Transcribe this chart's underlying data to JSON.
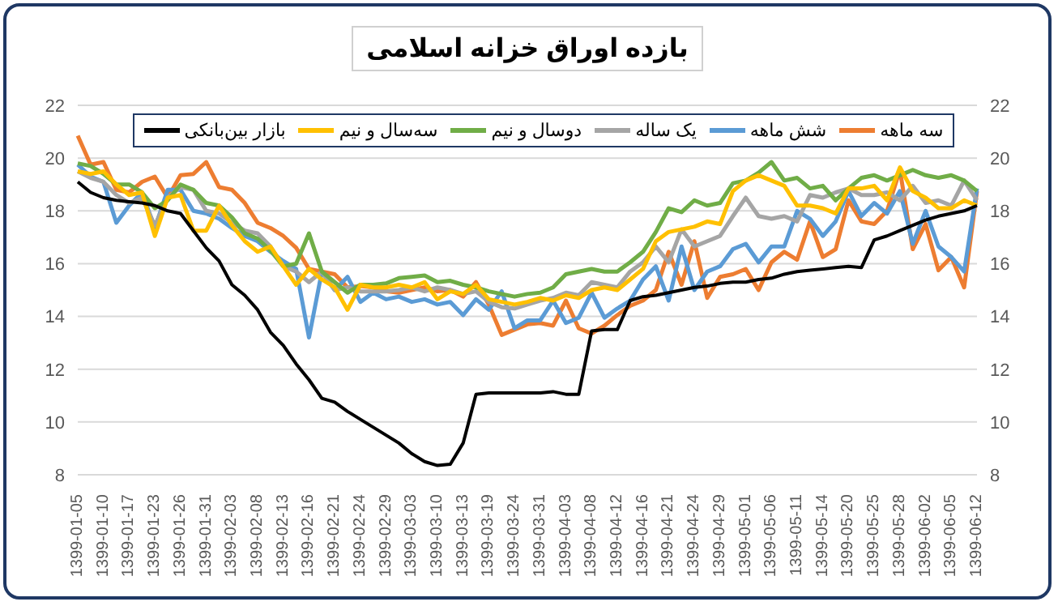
{
  "chart_data": {
    "type": "line",
    "title": "بازده اوراق خزانه اسلامی",
    "categories": [
      "1399-01-05",
      null,
      "1399-01-10",
      null,
      "1399-01-17",
      null,
      "1399-01-23",
      null,
      "1399-01-26",
      null,
      "1399-01-31",
      null,
      "1399-02-03",
      null,
      "1399-02-08",
      null,
      "1399-02-13",
      null,
      "1399-02-16",
      null,
      "1399-02-21",
      null,
      "1399-02-24",
      null,
      "1399-02-29",
      null,
      "1399-03-03",
      null,
      "1399-03-10",
      null,
      "1399-03-13",
      null,
      "1399-03-19",
      null,
      "1399-03-24",
      null,
      "1399-03-31",
      null,
      "1399-04-03",
      null,
      "1399-04-08",
      null,
      "1399-04-12",
      null,
      "1399-04-16",
      null,
      "1399-04-21",
      null,
      "1399-04-24",
      null,
      "1399-04-29",
      null,
      "1399-05-01",
      null,
      "1399-05-06",
      null,
      "1399-05-11",
      null,
      "1399-05-14",
      null,
      "1399-05-20",
      null,
      "1399-05-25",
      null,
      "1399-05-28",
      null,
      "1399-06-02",
      null,
      "1399-06-05",
      null,
      "1399-06-12"
    ],
    "series": [
      {
        "name": "سه ماهه",
        "color": "#ed7d31",
        "values": [
          20.85,
          19.75,
          19.85,
          18.8,
          18.7,
          19.1,
          19.3,
          18.5,
          19.35,
          19.4,
          19.85,
          18.9,
          18.8,
          18.3,
          17.55,
          17.35,
          17.05,
          16.6,
          15.8,
          15.7,
          15.6,
          15.1,
          15.15,
          15.1,
          14.95,
          14.9,
          15.0,
          15.1,
          14.95,
          15.0,
          14.75,
          15.3,
          14.45,
          13.3,
          13.5,
          13.7,
          13.75,
          13.65,
          14.6,
          13.55,
          13.35,
          13.65,
          14.05,
          14.4,
          14.6,
          15.0,
          16.45,
          15.2,
          16.85,
          14.7,
          15.5,
          15.6,
          15.8,
          15.0,
          16.05,
          16.45,
          16.15,
          17.6,
          16.25,
          16.55,
          18.4,
          17.6,
          17.5,
          18.0,
          19.55,
          16.55,
          17.5,
          15.75,
          16.25,
          15.1,
          18.75
        ]
      },
      {
        "name": "شش ماهه",
        "color": "#5b9bd5",
        "values": [
          19.75,
          19.3,
          19.1,
          17.55,
          18.2,
          18.7,
          17.35,
          18.8,
          18.8,
          18.0,
          17.9,
          17.7,
          17.35,
          17.05,
          16.85,
          16.45,
          16.1,
          15.8,
          13.2,
          15.7,
          15.0,
          15.5,
          14.55,
          14.9,
          14.65,
          14.75,
          14.55,
          14.65,
          14.45,
          14.55,
          14.05,
          14.65,
          14.25,
          14.95,
          13.55,
          13.85,
          13.85,
          14.6,
          13.75,
          13.95,
          14.9,
          13.95,
          14.3,
          14.6,
          15.4,
          15.9,
          14.6,
          16.65,
          15.0,
          15.7,
          15.9,
          16.55,
          16.75,
          16.05,
          16.65,
          16.65,
          18.0,
          17.7,
          17.05,
          17.6,
          18.75,
          17.8,
          18.3,
          17.9,
          18.75,
          16.75,
          18.0,
          16.65,
          16.25,
          15.7,
          18.85
        ]
      },
      {
        "name": "یک ساله",
        "color": "#a5a5a5",
        "values": [
          19.5,
          19.25,
          19.1,
          18.6,
          18.3,
          18.5,
          17.45,
          18.5,
          18.9,
          18.8,
          18.0,
          17.9,
          17.55,
          17.25,
          17.15,
          16.65,
          15.9,
          15.7,
          15.3,
          15.7,
          15.0,
          15.1,
          14.95,
          14.95,
          14.95,
          15.0,
          15.1,
          14.95,
          15.1,
          15.0,
          14.85,
          14.95,
          14.55,
          14.35,
          14.3,
          14.45,
          14.6,
          14.7,
          14.9,
          14.8,
          15.3,
          15.2,
          15.1,
          15.7,
          16.05,
          16.65,
          16.05,
          17.3,
          16.65,
          16.85,
          17.05,
          17.8,
          18.5,
          17.8,
          17.7,
          17.8,
          17.6,
          18.6,
          18.5,
          18.7,
          18.85,
          18.6,
          18.6,
          18.7,
          18.4,
          18.95,
          18.3,
          18.4,
          18.2,
          19.15,
          18.4
        ]
      },
      {
        "name": "دوسال و نیم",
        "color": "#70ad47",
        "values": [
          19.8,
          19.7,
          19.4,
          19.0,
          19.0,
          18.7,
          18.1,
          18.4,
          19.0,
          18.8,
          18.3,
          18.2,
          17.75,
          17.15,
          16.95,
          16.5,
          15.9,
          16.0,
          17.15,
          15.7,
          15.3,
          14.9,
          15.2,
          15.2,
          15.25,
          15.45,
          15.5,
          15.55,
          15.3,
          15.35,
          15.2,
          15.1,
          14.95,
          14.85,
          14.75,
          14.85,
          14.9,
          15.1,
          15.6,
          15.7,
          15.8,
          15.7,
          15.7,
          16.05,
          16.45,
          17.2,
          18.1,
          17.95,
          18.4,
          18.2,
          18.3,
          19.05,
          19.15,
          19.45,
          19.85,
          19.15,
          19.25,
          18.85,
          18.95,
          18.4,
          18.85,
          19.25,
          19.35,
          19.15,
          19.35,
          19.55,
          19.35,
          19.25,
          19.35,
          19.15,
          18.75
        ]
      },
      {
        "name": "سه‌سال و نیم",
        "color": "#ffc000",
        "values": [
          19.5,
          19.4,
          19.5,
          19.0,
          18.6,
          18.7,
          17.05,
          18.5,
          18.6,
          17.25,
          17.25,
          18.2,
          17.45,
          16.85,
          16.45,
          16.65,
          15.9,
          15.2,
          15.8,
          15.4,
          15.1,
          14.25,
          15.2,
          15.1,
          15.1,
          15.2,
          15.1,
          15.3,
          14.65,
          14.95,
          14.85,
          15.2,
          14.65,
          14.55,
          14.45,
          14.55,
          14.7,
          14.6,
          14.8,
          14.7,
          15.0,
          15.1,
          15.0,
          15.4,
          15.8,
          16.85,
          17.2,
          17.3,
          17.4,
          17.6,
          17.5,
          18.75,
          19.15,
          19.35,
          19.15,
          18.95,
          18.2,
          18.2,
          18.1,
          17.9,
          18.85,
          18.85,
          18.95,
          18.4,
          19.65,
          18.75,
          18.5,
          18.1,
          18.1,
          18.4,
          18.2
        ]
      },
      {
        "name": "بازار بین‌بانکی",
        "color": "#000000",
        "values": [
          19.1,
          18.7,
          18.5,
          18.4,
          18.35,
          18.3,
          18.2,
          18.0,
          17.9,
          17.25,
          16.6,
          16.1,
          15.2,
          14.8,
          14.25,
          13.4,
          12.9,
          12.2,
          11.6,
          10.9,
          10.75,
          10.4,
          10.1,
          9.8,
          9.5,
          9.2,
          8.8,
          8.5,
          8.35,
          8.4,
          9.2,
          11.05,
          11.1,
          11.1,
          11.1,
          11.1,
          11.1,
          11.15,
          11.05,
          11.05,
          13.45,
          13.5,
          13.5,
          14.6,
          14.75,
          14.8,
          14.9,
          15.0,
          15.1,
          15.15,
          15.25,
          15.3,
          15.3,
          15.4,
          15.45,
          15.6,
          15.7,
          15.75,
          15.8,
          15.85,
          15.9,
          15.85,
          16.9,
          17.05,
          17.25,
          17.45,
          17.65,
          17.8,
          17.9,
          18.0,
          18.2
        ]
      }
    ],
    "ylim": [
      8,
      22
    ],
    "yticks": [
      8,
      10,
      12,
      14,
      16,
      18,
      20,
      22
    ],
    "y2lim": [
      8,
      22
    ],
    "y2ticks": [
      8,
      10,
      12,
      14,
      16,
      18,
      20,
      22
    ],
    "grid": "y",
    "legend": "top"
  }
}
